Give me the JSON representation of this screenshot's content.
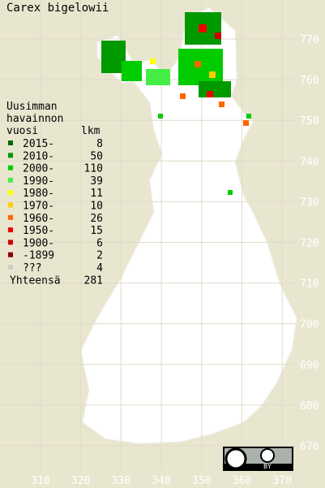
{
  "title": "Carex bigelowii",
  "legend": {
    "header": [
      "Uusimman",
      "havainnon"
    ],
    "col_year": "vuosi",
    "col_count": "lkm",
    "rows": [
      {
        "label": "2015-",
        "count": "8",
        "color": "#006600"
      },
      {
        "label": "2010-",
        "count": "50",
        "color": "#009900"
      },
      {
        "label": "2000-",
        "count": "110",
        "color": "#00cc00"
      },
      {
        "label": "1990-",
        "count": "39",
        "color": "#44ee44"
      },
      {
        "label": "1980-",
        "count": "11",
        "color": "#ffff00"
      },
      {
        "label": "1970-",
        "count": "10",
        "color": "#ffcc00"
      },
      {
        "label": "1960-",
        "count": "26",
        "color": "#ff6600"
      },
      {
        "label": "1950-",
        "count": "15",
        "color": "#ee0000"
      },
      {
        "label": "1900-",
        "count": "6",
        "color": "#cc0000"
      },
      {
        "label": "-1899",
        "count": "2",
        "color": "#880000"
      },
      {
        "label": "???",
        "count": "4",
        "color": "#cccccc"
      }
    ],
    "total_label": "Yhteensä",
    "total": "281"
  },
  "grid_y_labels": [
    "770",
    "760",
    "750",
    "740",
    "730",
    "720",
    "710",
    "700",
    "690",
    "680",
    "670"
  ],
  "grid_x_labels": [
    "310",
    "320",
    "330",
    "340",
    "350",
    "360",
    "370"
  ],
  "license": "BY"
}
